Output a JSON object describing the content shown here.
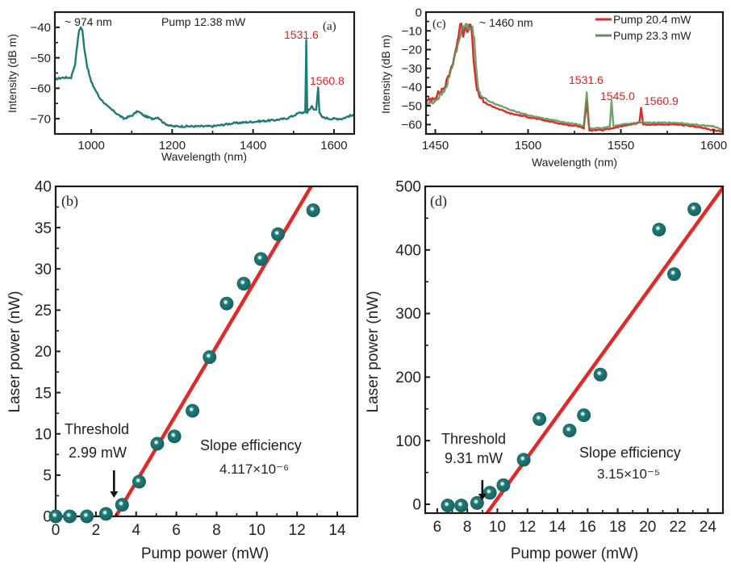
{
  "colors": {
    "teal": "#1f7a78",
    "red": "#e02a2a",
    "green": "#5e8f55",
    "axis": "#1a1a1a"
  },
  "chart_data": [
    {
      "id": "a",
      "type": "line",
      "panel_label": "(a)",
      "title": "",
      "xlabel": "Wavelength (nm)",
      "ylabel": "Intensity (dB m)",
      "xlim": [
        910,
        1650
      ],
      "ylim": [
        -75,
        -35
      ],
      "xticks": [
        1000,
        1200,
        1400,
        1600
      ],
      "yticks": [
        -40,
        -50,
        -60,
        -70
      ],
      "annotations": [
        {
          "text": "~ 974 nm",
          "x": 975,
          "y": -38
        },
        {
          "text": "Pump 12.38 mW",
          "x": 1200,
          "y": -38
        },
        {
          "text": "1531.6",
          "x": 1531.6,
          "y": -44,
          "color": "red"
        },
        {
          "text": "1560.8",
          "x": 1560.8,
          "y": -58,
          "color": "red"
        }
      ],
      "series": [
        {
          "name": "Pump 12.38 mW",
          "color": "#1f7a78",
          "x": [
            910,
            930,
            950,
            960,
            965,
            970,
            974,
            978,
            982,
            990,
            1000,
            1020,
            1040,
            1060,
            1080,
            1100,
            1115,
            1130,
            1150,
            1165,
            1180,
            1200,
            1250,
            1300,
            1350,
            1400,
            1450,
            1480,
            1500,
            1515,
            1525,
            1529,
            1531.6,
            1534,
            1538,
            1545,
            1550,
            1556,
            1560.8,
            1564,
            1570,
            1590,
            1620,
            1640,
            1650
          ],
          "y": [
            -57,
            -56.5,
            -56.5,
            -52,
            -46,
            -41,
            -40,
            -41,
            -46,
            -53,
            -58,
            -63,
            -66,
            -68,
            -70,
            -69,
            -67.5,
            -69,
            -70,
            -69.5,
            -71.5,
            -72.5,
            -72.5,
            -72.5,
            -71.5,
            -71,
            -70.5,
            -70,
            -69,
            -68,
            -68,
            -68,
            -44,
            -68,
            -67,
            -66,
            -67,
            -67,
            -59.5,
            -68,
            -69.5,
            -70,
            -70,
            -69,
            -69
          ]
        }
      ]
    },
    {
      "id": "c",
      "type": "line",
      "panel_label": "(c)",
      "title": "",
      "xlabel": "Wavelength (nm)",
      "ylabel": "Intensity (dB m)",
      "xlim": [
        1445,
        1605
      ],
      "ylim": [
        -65,
        0
      ],
      "xticks": [
        1450,
        1500,
        1550,
        1600
      ],
      "yticks": [
        0,
        -10,
        -20,
        -30,
        -40,
        -50,
        -60
      ],
      "legend": {
        "placement": "top-right",
        "entries": [
          "Pump 20.4 mW",
          "Pump 23.3 mW"
        ]
      },
      "annotations": [
        {
          "text": "~ 1460 nm",
          "x": 1472,
          "y": -7
        },
        {
          "text": "1531.6",
          "x": 1531.6,
          "y": -38,
          "color": "red"
        },
        {
          "text": "1545.0",
          "x": 1545.0,
          "y": -47,
          "color": "red"
        },
        {
          "text": "1560.9",
          "x": 1560.9,
          "y": -48,
          "color": "red"
        }
      ],
      "series": [
        {
          "name": "Pump 20.4 mW",
          "color": "#e02a2a",
          "x": [
            1445,
            1450,
            1455,
            1458,
            1460,
            1462,
            1464,
            1465,
            1466,
            1468,
            1469,
            1470,
            1471,
            1472,
            1474,
            1476,
            1480,
            1490,
            1500,
            1510,
            1520,
            1528,
            1530,
            1531.6,
            1533,
            1540,
            1545,
            1550,
            1555,
            1560,
            1560.9,
            1562,
            1570,
            1580,
            1590,
            1600,
            1605
          ],
          "y": [
            -48,
            -45,
            -40,
            -32,
            -25,
            -15,
            -5,
            -12,
            -8,
            -10,
            -6,
            -15,
            -30,
            -40,
            -45,
            -48,
            -50,
            -54,
            -56,
            -58,
            -60,
            -61,
            -62,
            -48,
            -63,
            -63,
            -62,
            -61,
            -60,
            -59,
            -51,
            -60,
            -60,
            -60,
            -61,
            -63,
            -64
          ]
        },
        {
          "name": "Pump 23.3 mW",
          "color": "#5e8f55",
          "x": [
            1445,
            1450,
            1455,
            1458,
            1460,
            1462,
            1464,
            1466,
            1468,
            1470,
            1471,
            1472,
            1473,
            1475,
            1480,
            1490,
            1500,
            1510,
            1520,
            1528,
            1530,
            1531.6,
            1533,
            1540,
            1544,
            1545.0,
            1546,
            1550,
            1560,
            1570,
            1580,
            1590,
            1600,
            1605
          ],
          "y": [
            -50,
            -47,
            -42,
            -33,
            -25,
            -18,
            -10,
            -7,
            -8,
            -8,
            -15,
            -30,
            -40,
            -45,
            -48,
            -52,
            -55,
            -57,
            -59,
            -60,
            -61,
            -43,
            -62,
            -62,
            -61,
            -47,
            -61,
            -60,
            -59,
            -59,
            -59,
            -60,
            -61,
            -63
          ]
        }
      ]
    },
    {
      "id": "b",
      "type": "scatter",
      "panel_label": "(b)",
      "title": "",
      "xlabel": "Pump power (mW)",
      "ylabel": "Laser power (nW)",
      "xlim": [
        0,
        15
      ],
      "ylim": [
        0,
        40
      ],
      "xticks": [
        0,
        2,
        4,
        6,
        8,
        10,
        12,
        14
      ],
      "yticks": [
        0,
        5,
        10,
        15,
        20,
        25,
        30,
        35,
        40
      ],
      "annotations": [
        {
          "text": "Threshold",
          "line": 1
        },
        {
          "text": "2.99 mW",
          "line": 2
        },
        {
          "text": "Slope efficiency",
          "line": 1
        },
        {
          "text": "4.117×10⁻⁶",
          "line": 2
        }
      ],
      "threshold_arrow_x": 2.9,
      "series": [
        {
          "name": "data",
          "color": "#1f7a78",
          "x": [
            0.0,
            0.7,
            1.55,
            2.5,
            3.3,
            4.15,
            5.05,
            5.9,
            6.8,
            7.65,
            8.5,
            9.35,
            10.2,
            11.05,
            12.8
          ],
          "y": [
            0.0,
            0.0,
            0.0,
            0.3,
            1.4,
            4.2,
            8.8,
            9.7,
            12.8,
            19.3,
            25.8,
            28.2,
            31.2,
            34.2,
            37.1
          ]
        },
        {
          "name": "linear fit",
          "color": "#e02a2a",
          "x": [
            2.99,
            12.7
          ],
          "y": [
            0,
            40
          ]
        }
      ]
    },
    {
      "id": "d",
      "type": "scatter",
      "panel_label": "(d)",
      "title": "",
      "xlabel": "Pump power (mW)",
      "ylabel": "Laser power (nW)",
      "xlim": [
        5.2,
        25.0
      ],
      "ylim": [
        -14,
        500
      ],
      "xticks": [
        6,
        8,
        10,
        12,
        14,
        16,
        18,
        20,
        22,
        24
      ],
      "yticks": [
        0,
        100,
        200,
        300,
        400,
        500
      ],
      "annotations": [
        {
          "text": "Threshold",
          "line": 1
        },
        {
          "text": "9.31 mW",
          "line": 2
        },
        {
          "text": "Slope efficiency",
          "line": 1
        },
        {
          "text": "3.15×10⁻⁵",
          "line": 2
        }
      ],
      "threshold_arrow_x": 9.0,
      "series": [
        {
          "name": "data",
          "color": "#1f7a78",
          "x": [
            6.7,
            7.6,
            8.65,
            9.5,
            10.4,
            11.75,
            12.8,
            14.8,
            15.75,
            16.85,
            20.75,
            21.75,
            23.1
          ],
          "y": [
            -2,
            -2,
            2,
            18,
            30,
            70,
            134,
            116,
            140,
            204,
            432,
            362,
            464
          ]
        },
        {
          "name": "linear fit",
          "color": "#e02a2a",
          "x": [
            9.31,
            25.0
          ],
          "y": [
            -14,
            498
          ]
        }
      ]
    }
  ]
}
